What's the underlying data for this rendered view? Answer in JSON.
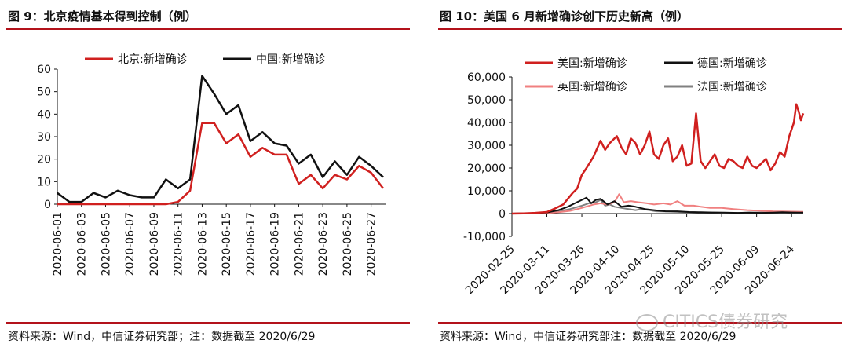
{
  "left_panel": {
    "title": "图 9：北京疫情基本得到控制（例）",
    "source": "资料来源：Wind，中信证券研究部；注：数据截至 2020/6/29"
  },
  "right_panel": {
    "title": "图 10：美国 6 月新增确诊创下历史新高（例）",
    "source": "资料来源：Wind，中信证券研究部注：数据截至 2020/6/29"
  },
  "watermark": "CITICS债券研究",
  "colors": {
    "red": "#d0201f",
    "black": "#111111",
    "pink": "#f08080",
    "gray": "#808080",
    "rule": "#b3121b"
  },
  "chart_data": [
    {
      "type": "line",
      "x": [
        "2020-06-01",
        "2020-06-02",
        "2020-06-03",
        "2020-06-04",
        "2020-06-05",
        "2020-06-06",
        "2020-06-07",
        "2020-06-08",
        "2020-06-09",
        "2020-06-10",
        "2020-06-11",
        "2020-06-12",
        "2020-06-13",
        "2020-06-14",
        "2020-06-15",
        "2020-06-16",
        "2020-06-17",
        "2020-06-18",
        "2020-06-19",
        "2020-06-20",
        "2020-06-21",
        "2020-06-22",
        "2020-06-23",
        "2020-06-24",
        "2020-06-25",
        "2020-06-26",
        "2020-06-27",
        "2020-06-28"
      ],
      "tick_labels": [
        "2020-06-01",
        "2020-06-03",
        "2020-06-05",
        "2020-06-07",
        "2020-06-09",
        "2020-06-11",
        "2020-06-13",
        "2020-06-15",
        "2020-06-17",
        "2020-06-19",
        "2020-06-21",
        "2020-06-23",
        "2020-06-25",
        "2020-06-27"
      ],
      "y_ticks": [
        "0",
        "10",
        "20",
        "30",
        "40",
        "50",
        "60"
      ],
      "ylim": [
        0,
        60
      ],
      "legend_placement": "top",
      "series": [
        {
          "name": "北京:新增确诊",
          "color": "#d0201f",
          "values": [
            0,
            0,
            0,
            0,
            0,
            0,
            0,
            0,
            0,
            0,
            1,
            6,
            36,
            36,
            27,
            31,
            21,
            25,
            22,
            22,
            9,
            13,
            7,
            13,
            11,
            17,
            14,
            7
          ]
        },
        {
          "name": "中国:新增确诊",
          "color": "#111111",
          "values": [
            5,
            1,
            1,
            5,
            3,
            6,
            4,
            3,
            3,
            11,
            7,
            11,
            57,
            49,
            40,
            44,
            28,
            32,
            27,
            26,
            18,
            22,
            12,
            19,
            13,
            21,
            17,
            12
          ]
        }
      ]
    },
    {
      "type": "line",
      "x_start": "2020-02-25",
      "x_end": "2020-06-29",
      "tick_labels": [
        "2020-02-25",
        "2020-03-11",
        "2020-03-26",
        "2020-04-10",
        "2020-04-25",
        "2020-05-10",
        "2020-05-25",
        "2020-06-09",
        "2020-06-24"
      ],
      "y_ticks": [
        "60,000",
        "50,000",
        "40,000",
        "30,000",
        "20,000",
        "10,000",
        "0",
        "-10,000"
      ],
      "ylim": [
        -10000,
        60000
      ],
      "legend_placement": "top",
      "series": [
        {
          "name": "美国:新增确诊",
          "color": "#d0201f",
          "points": [
            [
              "2020-02-25",
              0
            ],
            [
              "2020-03-01",
              100
            ],
            [
              "2020-03-06",
              300
            ],
            [
              "2020-03-11",
              700
            ],
            [
              "2020-03-14",
              2000
            ],
            [
              "2020-03-18",
              4000
            ],
            [
              "2020-03-22",
              9000
            ],
            [
              "2020-03-24",
              11000
            ],
            [
              "2020-03-26",
              17000
            ],
            [
              "2020-03-28",
              20000
            ],
            [
              "2020-03-31",
              25000
            ],
            [
              "2020-04-03",
              32000
            ],
            [
              "2020-04-05",
              28000
            ],
            [
              "2020-04-07",
              31000
            ],
            [
              "2020-04-10",
              34000
            ],
            [
              "2020-04-12",
              29000
            ],
            [
              "2020-04-14",
              26000
            ],
            [
              "2020-04-16",
              33000
            ],
            [
              "2020-04-18",
              31000
            ],
            [
              "2020-04-20",
              26000
            ],
            [
              "2020-04-22",
              30000
            ],
            [
              "2020-04-24",
              36000
            ],
            [
              "2020-04-26",
              26000
            ],
            [
              "2020-04-28",
              24000
            ],
            [
              "2020-04-30",
              30000
            ],
            [
              "2020-05-02",
              33000
            ],
            [
              "2020-05-04",
              23000
            ],
            [
              "2020-05-06",
              25000
            ],
            [
              "2020-05-08",
              30000
            ],
            [
              "2020-05-10",
              21000
            ],
            [
              "2020-05-12",
              22000
            ],
            [
              "2020-05-14",
              44000
            ],
            [
              "2020-05-16",
              23000
            ],
            [
              "2020-05-18",
              20000
            ],
            [
              "2020-05-20",
              23000
            ],
            [
              "2020-05-22",
              26000
            ],
            [
              "2020-05-24",
              21000
            ],
            [
              "2020-05-26",
              20000
            ],
            [
              "2020-05-28",
              24000
            ],
            [
              "2020-05-30",
              23000
            ],
            [
              "2020-06-01",
              21000
            ],
            [
              "2020-06-03",
              20000
            ],
            [
              "2020-06-05",
              25000
            ],
            [
              "2020-06-07",
              21000
            ],
            [
              "2020-06-09",
              20000
            ],
            [
              "2020-06-11",
              22000
            ],
            [
              "2020-06-13",
              24000
            ],
            [
              "2020-06-15",
              19000
            ],
            [
              "2020-06-17",
              22000
            ],
            [
              "2020-06-19",
              27000
            ],
            [
              "2020-06-21",
              25000
            ],
            [
              "2020-06-23",
              34000
            ],
            [
              "2020-06-24",
              37000
            ],
            [
              "2020-06-25",
              40000
            ],
            [
              "2020-06-26",
              48000
            ],
            [
              "2020-06-27",
              45000
            ],
            [
              "2020-06-28",
              41000
            ],
            [
              "2020-06-29",
              44000
            ]
          ]
        },
        {
          "name": "德国:新增确诊",
          "color": "#111111",
          "points": [
            [
              "2020-02-25",
              0
            ],
            [
              "2020-03-06",
              200
            ],
            [
              "2020-03-11",
              500
            ],
            [
              "2020-03-16",
              1500
            ],
            [
              "2020-03-20",
              3000
            ],
            [
              "2020-03-23",
              4500
            ],
            [
              "2020-03-26",
              6000
            ],
            [
              "2020-03-28",
              7000
            ],
            [
              "2020-03-30",
              4500
            ],
            [
              "2020-04-01",
              6000
            ],
            [
              "2020-04-03",
              6500
            ],
            [
              "2020-04-06",
              4000
            ],
            [
              "2020-04-09",
              5500
            ],
            [
              "2020-04-12",
              3000
            ],
            [
              "2020-04-15",
              3500
            ],
            [
              "2020-04-18",
              3000
            ],
            [
              "2020-04-22",
              2000
            ],
            [
              "2020-04-26",
              1500
            ],
            [
              "2020-05-01",
              1000
            ],
            [
              "2020-05-06",
              1000
            ],
            [
              "2020-05-11",
              700
            ],
            [
              "2020-05-16",
              600
            ],
            [
              "2020-05-21",
              500
            ],
            [
              "2020-05-26",
              400
            ],
            [
              "2020-06-01",
              300
            ],
            [
              "2020-06-06",
              400
            ],
            [
              "2020-06-11",
              300
            ],
            [
              "2020-06-16",
              400
            ],
            [
              "2020-06-20",
              600
            ],
            [
              "2020-06-24",
              500
            ],
            [
              "2020-06-29",
              400
            ]
          ]
        },
        {
          "name": "英国:新增确诊",
          "color": "#f08080",
          "points": [
            [
              "2020-02-25",
              0
            ],
            [
              "2020-03-06",
              100
            ],
            [
              "2020-03-11",
              200
            ],
            [
              "2020-03-16",
              600
            ],
            [
              "2020-03-21",
              1200
            ],
            [
              "2020-03-26",
              2500
            ],
            [
              "2020-03-31",
              4000
            ],
            [
              "2020-04-03",
              4500
            ],
            [
              "2020-04-06",
              4000
            ],
            [
              "2020-04-09",
              5000
            ],
            [
              "2020-04-11",
              8500
            ],
            [
              "2020-04-13",
              5000
            ],
            [
              "2020-04-16",
              5500
            ],
            [
              "2020-04-19",
              5000
            ],
            [
              "2020-04-23",
              4500
            ],
            [
              "2020-04-26",
              4000
            ],
            [
              "2020-04-30",
              4500
            ],
            [
              "2020-05-03",
              4000
            ],
            [
              "2020-05-06",
              5500
            ],
            [
              "2020-05-09",
              3500
            ],
            [
              "2020-05-13",
              3500
            ],
            [
              "2020-05-16",
              3000
            ],
            [
              "2020-05-20",
              2500
            ],
            [
              "2020-05-25",
              2500
            ],
            [
              "2020-05-30",
              2000
            ],
            [
              "2020-06-05",
              1500
            ],
            [
              "2020-06-11",
              1200
            ],
            [
              "2020-06-16",
              1000
            ],
            [
              "2020-06-22",
              900
            ],
            [
              "2020-06-29",
              800
            ]
          ]
        },
        {
          "name": "法国:新增确诊",
          "color": "#808080",
          "points": [
            [
              "2020-02-25",
              0
            ],
            [
              "2020-03-06",
              200
            ],
            [
              "2020-03-11",
              500
            ],
            [
              "2020-03-16",
              1000
            ],
            [
              "2020-03-21",
              2000
            ],
            [
              "2020-03-26",
              3500
            ],
            [
              "2020-03-29",
              4500
            ],
            [
              "2020-04-01",
              5000
            ],
            [
              "2020-04-03",
              6000
            ],
            [
              "2020-04-05",
              3500
            ],
            [
              "2020-04-07",
              4000
            ],
            [
              "2020-04-09",
              3000
            ],
            [
              "2020-04-12",
              2500
            ],
            [
              "2020-04-15",
              2000
            ],
            [
              "2020-04-18",
              1500
            ],
            [
              "2020-04-21",
              2000
            ],
            [
              "2020-04-24",
              1500
            ],
            [
              "2020-04-27",
              1000
            ],
            [
              "2020-05-02",
              900
            ],
            [
              "2020-05-07",
              700
            ],
            [
              "2020-05-12",
              600
            ],
            [
              "2020-05-17",
              500
            ],
            [
              "2020-05-22",
              400
            ],
            [
              "2020-05-27",
              300
            ],
            [
              "2020-06-01",
              300
            ],
            [
              "2020-06-06",
              400
            ],
            [
              "2020-06-11",
              500
            ],
            [
              "2020-06-16",
              400
            ],
            [
              "2020-06-21",
              500
            ],
            [
              "2020-06-29",
              300
            ]
          ]
        }
      ]
    }
  ]
}
